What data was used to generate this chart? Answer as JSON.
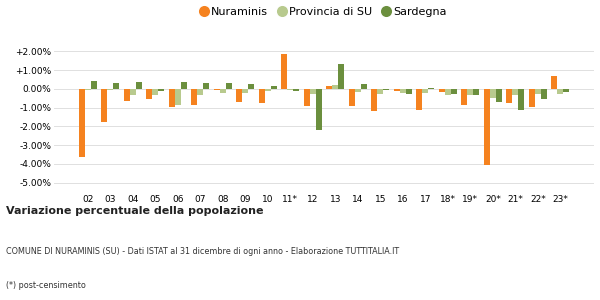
{
  "years": [
    "02",
    "03",
    "04",
    "05",
    "06",
    "07",
    "08",
    "09",
    "10",
    "11*",
    "12",
    "13",
    "14",
    "15",
    "16",
    "17",
    "18*",
    "19*",
    "20*",
    "21*",
    "22*",
    "23*"
  ],
  "nuraminis": [
    -3.65,
    -1.75,
    -0.65,
    -0.55,
    -0.95,
    -0.85,
    -0.05,
    -0.7,
    -0.75,
    1.85,
    -0.9,
    0.15,
    -0.9,
    -1.2,
    -0.1,
    -1.1,
    -0.15,
    -0.85,
    -4.05,
    -0.75,
    -0.95,
    0.7
  ],
  "provincia_su": [
    -0.05,
    -0.05,
    -0.35,
    -0.3,
    -0.85,
    -0.3,
    -0.2,
    -0.2,
    -0.1,
    -0.05,
    -0.25,
    0.2,
    -0.15,
    -0.25,
    -0.2,
    -0.2,
    -0.35,
    -0.35,
    -0.5,
    -0.3,
    -0.25,
    -0.25
  ],
  "sardegna": [
    0.4,
    0.3,
    0.35,
    -0.1,
    0.35,
    0.3,
    0.3,
    0.25,
    0.15,
    -0.1,
    -2.2,
    1.35,
    0.25,
    -0.05,
    -0.25,
    0.05,
    -0.25,
    -0.3,
    -0.7,
    -1.1,
    -0.55,
    -0.15
  ],
  "color_nuraminis": "#f5821f",
  "color_provincia": "#b8ca8e",
  "color_sardegna": "#6b8f3e",
  "title": "Variazione percentuale della popolazione",
  "subtitle": "COMUNE DI NURAMINIS (SU) - Dati ISTAT al 31 dicembre di ogni anno - Elaborazione TUTTITALIA.IT",
  "footnote": "(*) post-censimento",
  "ylim": [
    -5.5,
    2.5
  ],
  "yticks": [
    -5.0,
    -4.0,
    -3.0,
    -2.0,
    -1.0,
    0.0,
    1.0,
    2.0
  ],
  "background_color": "#ffffff",
  "grid_color": "#e0e0e0",
  "bar_width": 0.27
}
